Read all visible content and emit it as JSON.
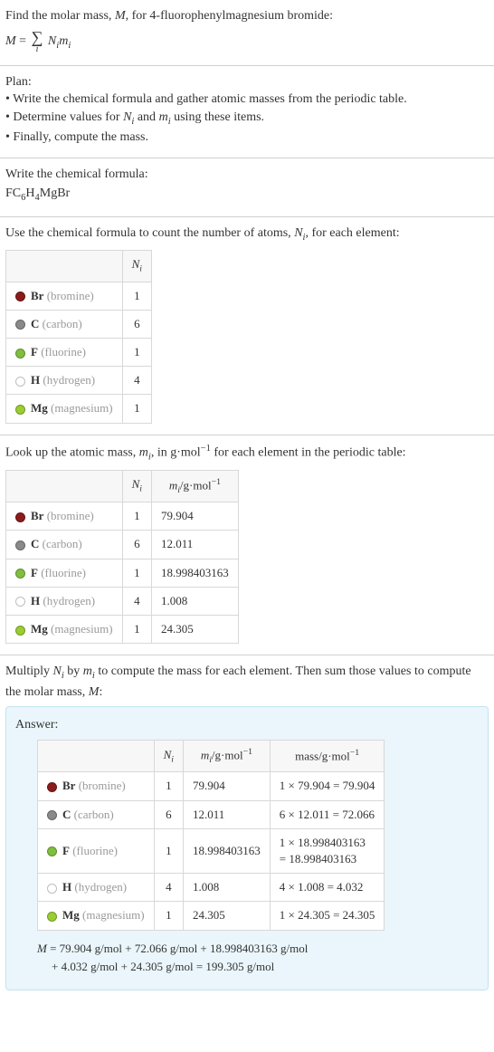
{
  "intro": {
    "line1_prefix": "Find the molar mass, ",
    "line1_var": "M",
    "line1_suffix": ", for 4-fluorophenylmagnesium bromide:",
    "eq_left": "M",
    "eq_eq": " = ",
    "eq_rhs_N": "N",
    "eq_rhs_m": "m",
    "eq_idx": "i"
  },
  "plan": {
    "title": "Plan:",
    "b1": "• Write the chemical formula and gather atomic masses from the periodic table.",
    "b2_pre": "• Determine values for ",
    "b2_n": "N",
    "b2_and": " and ",
    "b2_m": "m",
    "b2_post": " using these items.",
    "b3": "• Finally, compute the mass."
  },
  "formula": {
    "title": "Write the chemical formula:",
    "text_FC": "FC",
    "sub6": "6",
    "text_H": "H",
    "sub4": "4",
    "text_MgBr": "MgBr"
  },
  "count": {
    "title_pre": "Use the chemical formula to count the number of atoms, ",
    "title_var": "N",
    "title_post": ", for each element:",
    "header_N": "N",
    "rows": [
      {
        "color": "#8a1c1c",
        "sym": "Br",
        "name": " (bromine)",
        "n": "1"
      },
      {
        "color": "#8a8a8a",
        "sym": "C",
        "name": " (carbon)",
        "n": "6"
      },
      {
        "color": "#7fbf3f",
        "sym": "F",
        "name": " (fluorine)",
        "n": "1"
      },
      {
        "color": "#ffffff",
        "sym": "H",
        "name": " (hydrogen)",
        "n": "4"
      },
      {
        "color": "#9acd32",
        "sym": "Mg",
        "name": " (magnesium)",
        "n": "1"
      }
    ]
  },
  "lookup": {
    "title_pre": "Look up the atomic mass, ",
    "title_var": "m",
    "title_mid": ", in g·mol",
    "title_exp": "−1",
    "title_post": " for each element in the periodic table:",
    "header_N": "N",
    "header_m_pre": "m",
    "header_m_unit": "/g·mol",
    "header_m_exp": "−1",
    "rows": [
      {
        "color": "#8a1c1c",
        "sym": "Br",
        "name": " (bromine)",
        "n": "1",
        "m": "79.904"
      },
      {
        "color": "#8a8a8a",
        "sym": "C",
        "name": " (carbon)",
        "n": "6",
        "m": "12.011"
      },
      {
        "color": "#7fbf3f",
        "sym": "F",
        "name": " (fluorine)",
        "n": "1",
        "m": "18.998403163"
      },
      {
        "color": "#ffffff",
        "sym": "H",
        "name": " (hydrogen)",
        "n": "4",
        "m": "1.008"
      },
      {
        "color": "#9acd32",
        "sym": "Mg",
        "name": " (magnesium)",
        "n": "1",
        "m": "24.305"
      }
    ]
  },
  "compute": {
    "title_pre": "Multiply ",
    "title_N": "N",
    "title_by": " by ",
    "title_m": "m",
    "title_post": " to compute the mass for each element. Then sum those values to compute the molar mass, ",
    "title_M": "M",
    "title_colon": ":",
    "answer_label": "Answer:",
    "header_N": "N",
    "header_m_pre": "m",
    "header_unit": "/g·mol",
    "header_exp": "−1",
    "header_mass": "mass/g·mol",
    "rows": [
      {
        "color": "#8a1c1c",
        "sym": "Br",
        "name": " (bromine)",
        "n": "1",
        "m": "79.904",
        "mass": "1 × 79.904 = 79.904"
      },
      {
        "color": "#8a8a8a",
        "sym": "C",
        "name": " (carbon)",
        "n": "6",
        "m": "12.011",
        "mass": "6 × 12.011 = 72.066"
      },
      {
        "color": "#7fbf3f",
        "sym": "F",
        "name": " (fluorine)",
        "n": "1",
        "m": "18.998403163",
        "mass_l1": "1 × 18.998403163",
        "mass_l2": "= 18.998403163"
      },
      {
        "color": "#ffffff",
        "sym": "H",
        "name": " (hydrogen)",
        "n": "4",
        "m": "1.008",
        "mass": "4 × 1.008 = 4.032"
      },
      {
        "color": "#9acd32",
        "sym": "Mg",
        "name": " (magnesium)",
        "n": "1",
        "m": "24.305",
        "mass": "1 × 24.305 = 24.305"
      }
    ],
    "final_var": "M",
    "final_l1": " = 79.904 g/mol + 72.066 g/mol + 18.998403163 g/mol",
    "final_l2": "+ 4.032 g/mol + 24.305 g/mol = 199.305 g/mol"
  }
}
